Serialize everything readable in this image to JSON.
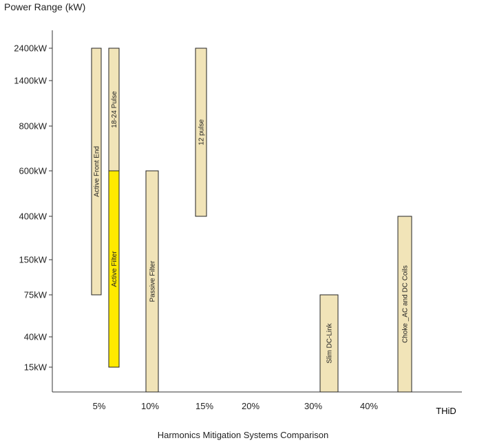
{
  "chart_data": {
    "type": "bar",
    "title": "Harmonics Mitigation Systems Comparison",
    "ylabel": "Power Range (kW)",
    "xlabel": "THiD",
    "x_ticks": [
      "5%",
      "10%",
      "15%",
      "20%",
      "30%",
      "40%"
    ],
    "y_ticks": [
      "15kW",
      "40kW",
      "75kW",
      "150kW",
      "400kW",
      "600kW",
      "800kW",
      "1400kW",
      "2400kW"
    ],
    "y_scale": "categorical-log-like",
    "series": [
      {
        "name": "Active Front End",
        "thid_pct": 5,
        "range_kw": [
          75,
          2400
        ],
        "color": "#f1e4b8"
      },
      {
        "name": "18-24 Pulse",
        "thid_pct": 6,
        "range_kw": [
          600,
          2400
        ],
        "color": "#f1e4b8"
      },
      {
        "name": "Active Filter",
        "thid_pct": 6,
        "range_kw": [
          15,
          600
        ],
        "color": "#ffea00"
      },
      {
        "name": "Passive Filter",
        "thid_pct": 10,
        "range_kw": [
          0,
          600
        ],
        "color": "#f1e4b8"
      },
      {
        "name": "12 pulse",
        "thid_pct": 15,
        "range_kw": [
          400,
          2400
        ],
        "color": "#f1e4b8"
      },
      {
        "name": "Slim DC-Link",
        "thid_pct": 32,
        "range_kw": [
          0,
          75
        ],
        "color": "#f1e4b8"
      },
      {
        "name": "Choke _AC and DC Coils",
        "thid_pct": 44,
        "range_kw": [
          0,
          400
        ],
        "color": "#f1e4b8"
      }
    ],
    "grid": false
  }
}
